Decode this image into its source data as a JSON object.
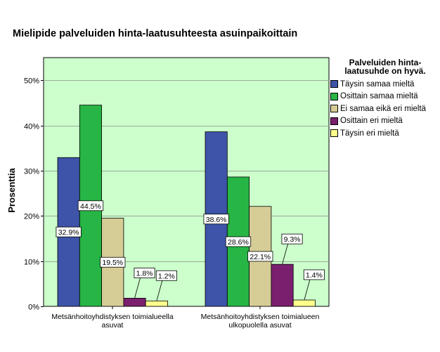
{
  "chart_data": {
    "type": "bar",
    "title": "Mielipide palveluiden hinta-laatusuhteesta asuinpaikoittain",
    "xlabel": "",
    "ylabel": "Prosenttia",
    "ylim": [
      0,
      55
    ],
    "yticks": [
      0,
      10,
      20,
      30,
      40,
      50
    ],
    "ytick_labels": [
      "0%",
      "10%",
      "20%",
      "30%",
      "40%",
      "50%"
    ],
    "grid": true,
    "legend_position": "right",
    "legend_title": [
      "Palveluiden hinta-",
      "laatusuhde on hyvä."
    ],
    "categories": [
      [
        "Metsänhoitoyhdistyksen toimialueella",
        "asuvat"
      ],
      [
        "Metsänhoitoyhdistyksen toimialueen",
        "ulkopuolella asuvat"
      ]
    ],
    "series": [
      {
        "name": "Täysin samaa mieltä",
        "color": "#3d54a8",
        "values": [
          32.9,
          38.6
        ],
        "labels": [
          "32.9%",
          "38.6%"
        ]
      },
      {
        "name": "Osittain samaa mieltä",
        "color": "#27b545",
        "values": [
          44.5,
          28.6
        ],
        "labels": [
          "44.5%",
          "28.6%"
        ]
      },
      {
        "name": "Ei samaa eikä eri mieltä",
        "color": "#d6cd96",
        "values": [
          19.5,
          22.1
        ],
        "labels": [
          "19.5%",
          "22.1%"
        ]
      },
      {
        "name": "Osittain eri mieltä",
        "color": "#7a1f6e",
        "values": [
          1.8,
          9.3
        ],
        "labels": [
          "1.8%",
          "9.3%"
        ]
      },
      {
        "name": "Täysin eri mieltä",
        "color": "#ffff8c",
        "values": [
          1.2,
          1.4
        ],
        "labels": [
          "1.2%",
          "1.4%"
        ]
      }
    ],
    "plot_background": "#ccffcc"
  }
}
